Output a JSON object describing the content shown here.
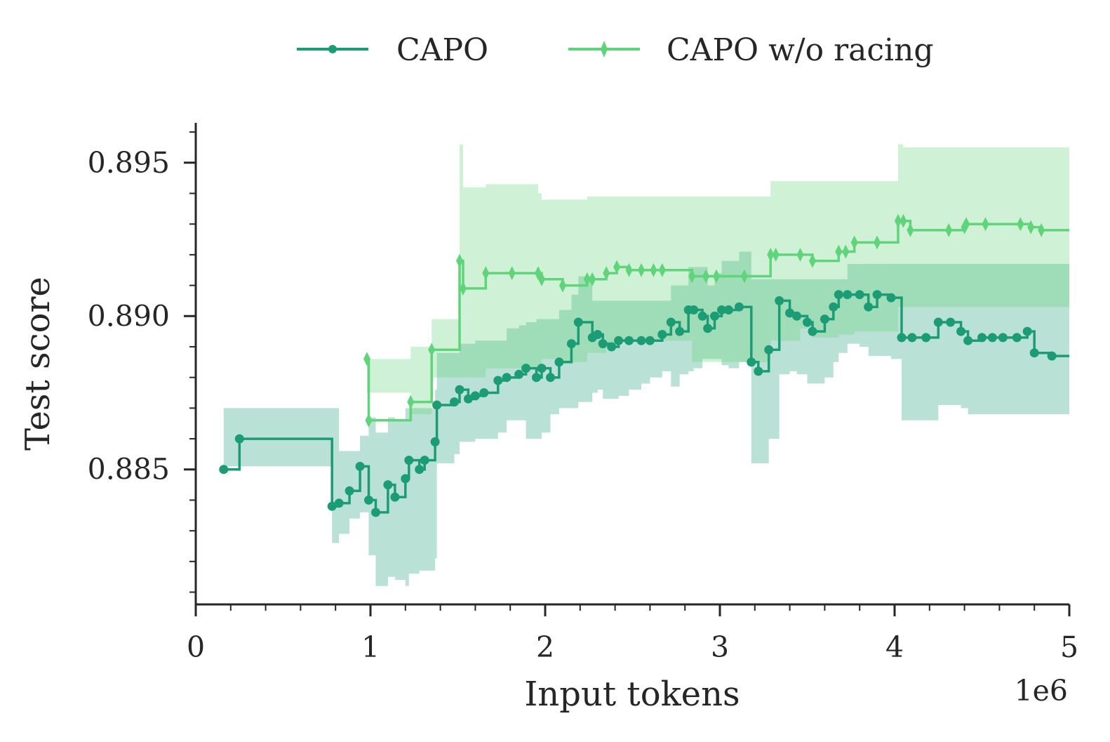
{
  "chart_data": {
    "type": "line",
    "step": true,
    "xlabel": "Input tokens",
    "ylabel": "Test score",
    "x_offset_label": "1e6",
    "xlim": [
      0,
      5
    ],
    "ylim": [
      0.8806,
      0.8963
    ],
    "x_ticks": [
      0,
      1,
      2,
      3,
      4,
      5
    ],
    "x_tick_labels": [
      "0",
      "1",
      "2",
      "3",
      "4",
      "5"
    ],
    "y_ticks": [
      0.885,
      0.89,
      0.895
    ],
    "y_tick_labels": [
      "0.885",
      "0.890",
      "0.895"
    ],
    "grid": false,
    "legend": {
      "placement": "top-center",
      "entries": [
        "CAPO",
        "CAPO w/o racing"
      ]
    },
    "series": [
      {
        "name": "CAPO",
        "color": "#1c9c74",
        "band_color": "#1c9c74",
        "marker": "circle",
        "x": [
          0.16,
          0.25,
          0.78,
          0.82,
          0.88,
          0.94,
          0.99,
          1.03,
          1.1,
          1.14,
          1.2,
          1.22,
          1.28,
          1.31,
          1.37,
          1.38,
          1.48,
          1.51,
          1.56,
          1.6,
          1.65,
          1.73,
          1.78,
          1.85,
          1.89,
          1.95,
          1.98,
          2.03,
          2.08,
          2.15,
          2.19,
          2.27,
          2.3,
          2.33,
          2.38,
          2.42,
          2.48,
          2.55,
          2.6,
          2.67,
          2.72,
          2.77,
          2.82,
          2.85,
          2.9,
          2.93,
          2.97,
          3.01,
          3.05,
          3.11,
          3.18,
          3.22,
          3.28,
          3.34,
          3.4,
          3.44,
          3.5,
          3.53,
          3.6,
          3.65,
          3.68,
          3.73,
          3.8,
          3.85,
          3.9,
          3.98,
          4.04,
          4.1,
          4.18,
          4.25,
          4.32,
          4.38,
          4.42,
          4.5,
          4.56,
          4.62,
          4.7,
          4.76,
          4.8,
          4.9,
          5.0
        ],
        "y": [
          0.885,
          0.886,
          0.8838,
          0.8839,
          0.8843,
          0.8851,
          0.884,
          0.8836,
          0.8845,
          0.8841,
          0.8847,
          0.8853,
          0.885,
          0.8853,
          0.8859,
          0.8871,
          0.8872,
          0.8876,
          0.8873,
          0.8874,
          0.8875,
          0.8879,
          0.888,
          0.8881,
          0.8883,
          0.888,
          0.8883,
          0.888,
          0.8885,
          0.8891,
          0.8898,
          0.8893,
          0.8894,
          0.8891,
          0.889,
          0.8892,
          0.8892,
          0.8892,
          0.8892,
          0.8894,
          0.8898,
          0.8895,
          0.8902,
          0.8902,
          0.89,
          0.8896,
          0.89,
          0.8902,
          0.8902,
          0.8903,
          0.8885,
          0.8882,
          0.8889,
          0.8905,
          0.8901,
          0.89,
          0.8898,
          0.8895,
          0.8899,
          0.8903,
          0.8907,
          0.8907,
          0.8907,
          0.8903,
          0.8907,
          0.8906,
          0.8893,
          0.8893,
          0.8893,
          0.8898,
          0.8898,
          0.8895,
          0.8892,
          0.8893,
          0.8893,
          0.8893,
          0.8893,
          0.8895,
          0.8888,
          0.8887,
          0.8887
        ],
        "lower": [
          0.8851,
          0.8851,
          0.8826,
          0.8829,
          0.8834,
          0.8836,
          0.8822,
          0.8812,
          0.8815,
          0.8814,
          0.8812,
          0.8816,
          0.8817,
          0.8817,
          0.8821,
          0.8852,
          0.8855,
          0.8859,
          0.8859,
          0.886,
          0.886,
          0.8862,
          0.8866,
          0.8866,
          0.886,
          0.886,
          0.8862,
          0.8868,
          0.887,
          0.887,
          0.8872,
          0.8875,
          0.8876,
          0.8873,
          0.8873,
          0.8874,
          0.8876,
          0.8878,
          0.888,
          0.8882,
          0.8877,
          0.8881,
          0.8882,
          0.8883,
          0.8886,
          0.8886,
          0.8886,
          0.8884,
          0.8883,
          0.8885,
          0.8852,
          0.8852,
          0.886,
          0.8881,
          0.8882,
          0.8881,
          0.8878,
          0.8878,
          0.888,
          0.8885,
          0.8888,
          0.8891,
          0.889,
          0.8887,
          0.8887,
          0.8886,
          0.8866,
          0.8866,
          0.8866,
          0.8871,
          0.8871,
          0.887,
          0.8868,
          0.8868,
          0.8868,
          0.8868,
          0.8868,
          0.8868,
          0.8868,
          0.8868,
          0.8868
        ],
        "upper": [
          0.887,
          0.887,
          0.887,
          0.8856,
          0.8856,
          0.8861,
          0.8867,
          0.8862,
          0.8867,
          0.8866,
          0.887,
          0.887,
          0.887,
          0.887,
          0.8876,
          0.8888,
          0.8888,
          0.8891,
          0.8891,
          0.8892,
          0.8892,
          0.8892,
          0.8896,
          0.8897,
          0.8898,
          0.8899,
          0.8899,
          0.8899,
          0.8902,
          0.8907,
          0.8913,
          0.8905,
          0.8905,
          0.8905,
          0.8905,
          0.8905,
          0.8905,
          0.8905,
          0.8905,
          0.8905,
          0.891,
          0.891,
          0.8916,
          0.8916,
          0.8916,
          0.891,
          0.8914,
          0.8918,
          0.8918,
          0.8921,
          0.8912,
          0.8912,
          0.8912,
          0.8912,
          0.8912,
          0.8912,
          0.8912,
          0.8912,
          0.8912,
          0.8912,
          0.8912,
          0.8917,
          0.8917,
          0.8917,
          0.8917,
          0.8917,
          0.8917,
          0.8917,
          0.8917,
          0.8917,
          0.8917,
          0.8917,
          0.8917,
          0.8917,
          0.8917,
          0.8917,
          0.8917,
          0.8917,
          0.8917,
          0.8917,
          0.8917
        ]
      },
      {
        "name": "CAPO w/o racing",
        "color": "#5fd47a",
        "band_color": "#5fd47a",
        "marker": "diamond",
        "x": [
          0.98,
          0.99,
          1.23,
          1.35,
          1.51,
          1.53,
          1.66,
          1.81,
          1.96,
          1.98,
          2.1,
          2.24,
          2.27,
          2.35,
          2.41,
          2.48,
          2.55,
          2.62,
          2.67,
          2.84,
          2.92,
          2.98,
          3.14,
          3.29,
          3.32,
          3.46,
          3.53,
          3.68,
          3.72,
          3.77,
          3.9,
          4.02,
          4.05,
          4.09,
          4.31,
          4.4,
          4.41,
          4.52,
          4.72,
          4.78,
          4.84,
          5.0
        ],
        "y": [
          0.8886,
          0.8866,
          0.8872,
          0.8889,
          0.8918,
          0.8909,
          0.8914,
          0.8914,
          0.8914,
          0.8912,
          0.891,
          0.8912,
          0.8912,
          0.8914,
          0.8916,
          0.8915,
          0.8915,
          0.8915,
          0.8915,
          0.8913,
          0.8913,
          0.8913,
          0.8913,
          0.892,
          0.892,
          0.892,
          0.8918,
          0.8921,
          0.8921,
          0.8924,
          0.8924,
          0.8931,
          0.8931,
          0.8928,
          0.8928,
          0.8929,
          0.893,
          0.893,
          0.893,
          0.8929,
          0.8928,
          0.8928
        ],
        "lower": [
          0.8875,
          0.8875,
          0.8868,
          0.888,
          0.888,
          0.888,
          0.8883,
          0.8883,
          0.8883,
          0.8886,
          0.8885,
          0.8888,
          0.8888,
          0.889,
          0.8892,
          0.8892,
          0.8892,
          0.8892,
          0.8892,
          0.8885,
          0.8885,
          0.8885,
          0.8885,
          0.8892,
          0.8892,
          0.8896,
          0.8893,
          0.8894,
          0.8894,
          0.8895,
          0.8895,
          0.8903,
          0.8903,
          0.8903,
          0.8903,
          0.8903,
          0.8903,
          0.8903,
          0.8903,
          0.8903,
          0.8903,
          0.8903
        ],
        "upper": [
          0.8886,
          0.8886,
          0.889,
          0.8899,
          0.8956,
          0.8942,
          0.8943,
          0.8943,
          0.894,
          0.8938,
          0.8938,
          0.8939,
          0.8939,
          0.8939,
          0.8939,
          0.8939,
          0.8939,
          0.8939,
          0.8939,
          0.8939,
          0.8939,
          0.8939,
          0.8939,
          0.8944,
          0.8944,
          0.8944,
          0.8944,
          0.8944,
          0.8944,
          0.8944,
          0.8944,
          0.8956,
          0.8955,
          0.8955,
          0.8955,
          0.8955,
          0.8955,
          0.8955,
          0.8955,
          0.8955,
          0.8955,
          0.8955
        ]
      }
    ]
  }
}
